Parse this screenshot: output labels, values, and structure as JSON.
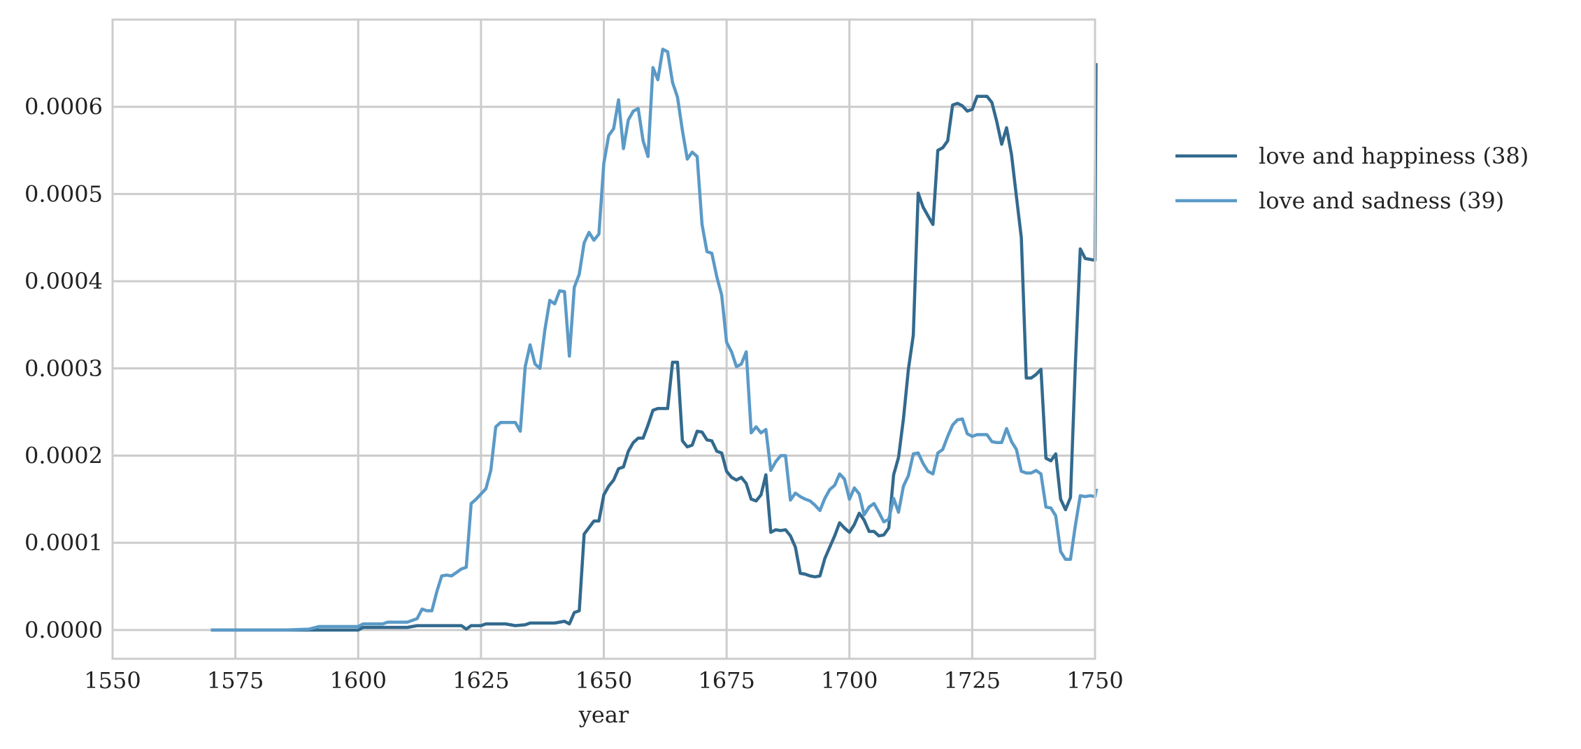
{
  "chart_data": {
    "type": "line",
    "title": "",
    "xlabel": "year",
    "ylabel": "",
    "xlim": [
      1550,
      1750
    ],
    "ylim": [
      -3.3e-05,
      0.0007
    ],
    "xticks": [
      1550,
      1575,
      1600,
      1625,
      1650,
      1675,
      1700,
      1725,
      1750
    ],
    "xtick_labels": [
      "1550",
      "1575",
      "1600",
      "1625",
      "1650",
      "1675",
      "1700",
      "1725",
      "1750"
    ],
    "yticks": [
      0,
      0.0001,
      0.0002,
      0.0003,
      0.0004,
      0.0005,
      0.0006
    ],
    "ytick_labels": [
      "0.0000",
      "0.0001",
      "0.0002",
      "0.0003",
      "0.0004",
      "0.0005",
      "0.0006"
    ],
    "grid": true,
    "legend_position": "outside-right-top",
    "series": [
      {
        "name": "love and happiness (38)",
        "color": "#336a8e",
        "points": [
          [
            1570,
            0
          ],
          [
            1575,
            0
          ],
          [
            1580,
            0
          ],
          [
            1585,
            0
          ],
          [
            1590,
            0
          ],
          [
            1595,
            0
          ],
          [
            1600,
            0
          ],
          [
            1601,
            3e-06
          ],
          [
            1605,
            3e-06
          ],
          [
            1610,
            3e-06
          ],
          [
            1612,
            5e-06
          ],
          [
            1618,
            5e-06
          ],
          [
            1621,
            5e-06
          ],
          [
            1622,
            1e-06
          ],
          [
            1623,
            5e-06
          ],
          [
            1625,
            5e-06
          ],
          [
            1626,
            7e-06
          ],
          [
            1630,
            7e-06
          ],
          [
            1632,
            5e-06
          ],
          [
            1634,
            6e-06
          ],
          [
            1635,
            8e-06
          ],
          [
            1640,
            8e-06
          ],
          [
            1642,
            1e-05
          ],
          [
            1643,
            7e-06
          ],
          [
            1644,
            2e-05
          ],
          [
            1645,
            2.2e-05
          ],
          [
            1646,
            0.00011
          ],
          [
            1648,
            0.000125
          ],
          [
            1649,
            0.000125
          ],
          [
            1650,
            0.000155
          ],
          [
            1651,
            0.000165
          ],
          [
            1652,
            0.000172
          ],
          [
            1653,
            0.000185
          ],
          [
            1654,
            0.000187
          ],
          [
            1655,
            0.000205
          ],
          [
            1656,
            0.000215
          ],
          [
            1657,
            0.00022
          ],
          [
            1658,
            0.00022
          ],
          [
            1659,
            0.000235
          ],
          [
            1660,
            0.000252
          ],
          [
            1661,
            0.000254
          ],
          [
            1662,
            0.000254
          ],
          [
            1663,
            0.000254
          ],
          [
            1664,
            0.000307
          ],
          [
            1665,
            0.000307
          ],
          [
            1666,
            0.000217
          ],
          [
            1667,
            0.00021
          ],
          [
            1668,
            0.000212
          ],
          [
            1669,
            0.000228
          ],
          [
            1670,
            0.000227
          ],
          [
            1671,
            0.000218
          ],
          [
            1672,
            0.000217
          ],
          [
            1673,
            0.000205
          ],
          [
            1674,
            0.000203
          ],
          [
            1675,
            0.000182
          ],
          [
            1676,
            0.000175
          ],
          [
            1677,
            0.000172
          ],
          [
            1678,
            0.000175
          ],
          [
            1679,
            0.000168
          ],
          [
            1680,
            0.00015
          ],
          [
            1681,
            0.000148
          ],
          [
            1682,
            0.000155
          ],
          [
            1683,
            0.000178
          ],
          [
            1684,
            0.000112
          ],
          [
            1685,
            0.000115
          ],
          [
            1686,
            0.000114
          ],
          [
            1687,
            0.000115
          ],
          [
            1688,
            0.000108
          ],
          [
            1689,
            9.5e-05
          ],
          [
            1690,
            6.5e-05
          ],
          [
            1691,
            6.4e-05
          ],
          [
            1692,
            6.2e-05
          ],
          [
            1693,
            6.1e-05
          ],
          [
            1694,
            6.2e-05
          ],
          [
            1695,
            8.2e-05
          ],
          [
            1696,
            9.5e-05
          ],
          [
            1697,
            0.000108
          ],
          [
            1698,
            0.000123
          ],
          [
            1699,
            0.000117
          ],
          [
            1700,
            0.000112
          ],
          [
            1701,
            0.000121
          ],
          [
            1702,
            0.000134
          ],
          [
            1703,
            0.000126
          ],
          [
            1704,
            0.000113
          ],
          [
            1705,
            0.000113
          ],
          [
            1706,
            0.000108
          ],
          [
            1707,
            0.000109
          ],
          [
            1708,
            0.000117
          ],
          [
            1709,
            0.000178
          ],
          [
            1710,
            0.000198
          ],
          [
            1711,
            0.000242
          ],
          [
            1712,
            0.000299
          ],
          [
            1713,
            0.000338
          ],
          [
            1714,
            0.000501
          ],
          [
            1715,
            0.000485
          ],
          [
            1716,
            0.000475
          ],
          [
            1717,
            0.000465
          ],
          [
            1718,
            0.00055
          ],
          [
            1719,
            0.000553
          ],
          [
            1720,
            0.000561
          ],
          [
            1721,
            0.000602
          ],
          [
            1722,
            0.000604
          ],
          [
            1723,
            0.000601
          ],
          [
            1724,
            0.000595
          ],
          [
            1725,
            0.000597
          ],
          [
            1726,
            0.000612
          ],
          [
            1727,
            0.000612
          ],
          [
            1728,
            0.000612
          ],
          [
            1729,
            0.000605
          ],
          [
            1730,
            0.000583
          ],
          [
            1731,
            0.000557
          ],
          [
            1732,
            0.000576
          ],
          [
            1733,
            0.000545
          ],
          [
            1734,
            0.000497
          ],
          [
            1735,
            0.00045
          ],
          [
            1736,
            0.000289
          ],
          [
            1737,
            0.000289
          ],
          [
            1738,
            0.000293
          ],
          [
            1739,
            0.000299
          ],
          [
            1740,
            0.000197
          ],
          [
            1741,
            0.000194
          ],
          [
            1742,
            0.000202
          ],
          [
            1743,
            0.00015
          ],
          [
            1744,
            0.000138
          ],
          [
            1745,
            0.000152
          ],
          [
            1746,
            0.000305
          ],
          [
            1747,
            0.000437
          ],
          [
            1748,
            0.000426
          ],
          [
            1749,
            0.000425
          ],
          [
            1750,
            0.000424
          ],
          [
            1750.2,
            0.00065
          ]
        ]
      },
      {
        "name": "love and sadness (39)",
        "color": "#5b9ac7",
        "points": [
          [
            1570,
            0
          ],
          [
            1575,
            0
          ],
          [
            1580,
            0
          ],
          [
            1585,
            0
          ],
          [
            1590,
            1e-06
          ],
          [
            1592,
            4e-06
          ],
          [
            1595,
            4e-06
          ],
          [
            1600,
            4e-06
          ],
          [
            1601,
            7e-06
          ],
          [
            1605,
            7e-06
          ],
          [
            1606,
            9e-06
          ],
          [
            1610,
            9e-06
          ],
          [
            1612,
            1.3e-05
          ],
          [
            1613,
            2.4e-05
          ],
          [
            1614,
            2.2e-05
          ],
          [
            1615,
            2.2e-05
          ],
          [
            1616,
            4.4e-05
          ],
          [
            1617,
            6.2e-05
          ],
          [
            1618,
            6.3e-05
          ],
          [
            1619,
            6.2e-05
          ],
          [
            1620,
            6.6e-05
          ],
          [
            1621,
            7e-05
          ],
          [
            1622,
            7.2e-05
          ],
          [
            1623,
            0.000145
          ],
          [
            1624,
            0.00015
          ],
          [
            1625,
            0.000156
          ],
          [
            1626,
            0.000162
          ],
          [
            1627,
            0.000183
          ],
          [
            1628,
            0.000233
          ],
          [
            1629,
            0.000238
          ],
          [
            1630,
            0.000238
          ],
          [
            1631,
            0.000238
          ],
          [
            1632,
            0.000238
          ],
          [
            1633,
            0.000228
          ],
          [
            1634,
            0.000302
          ],
          [
            1635,
            0.000327
          ],
          [
            1636,
            0.000305
          ],
          [
            1637,
            0.0003
          ],
          [
            1638,
            0.000344
          ],
          [
            1639,
            0.000378
          ],
          [
            1640,
            0.000374
          ],
          [
            1641,
            0.000389
          ],
          [
            1642,
            0.000388
          ],
          [
            1643,
            0.000314
          ],
          [
            1644,
            0.000393
          ],
          [
            1645,
            0.000408
          ],
          [
            1646,
            0.000444
          ],
          [
            1647,
            0.000456
          ],
          [
            1648,
            0.000447
          ],
          [
            1649,
            0.000454
          ],
          [
            1650,
            0.000535
          ],
          [
            1651,
            0.000567
          ],
          [
            1652,
            0.000575
          ],
          [
            1653,
            0.000608
          ],
          [
            1654,
            0.000552
          ],
          [
            1655,
            0.000585
          ],
          [
            1656,
            0.000595
          ],
          [
            1657,
            0.000598
          ],
          [
            1658,
            0.000561
          ],
          [
            1659,
            0.000543
          ],
          [
            1660,
            0.000645
          ],
          [
            1661,
            0.000631
          ],
          [
            1662,
            0.000666
          ],
          [
            1663,
            0.000663
          ],
          [
            1664,
            0.000628
          ],
          [
            1665,
            0.000611
          ],
          [
            1666,
            0.000573
          ],
          [
            1667,
            0.00054
          ],
          [
            1668,
            0.000548
          ],
          [
            1669,
            0.000543
          ],
          [
            1670,
            0.000465
          ],
          [
            1671,
            0.000434
          ],
          [
            1672,
            0.000432
          ],
          [
            1673,
            0.000405
          ],
          [
            1674,
            0.000384
          ],
          [
            1675,
            0.00033
          ],
          [
            1676,
            0.000319
          ],
          [
            1677,
            0.000302
          ],
          [
            1678,
            0.000305
          ],
          [
            1679,
            0.000319
          ],
          [
            1680,
            0.000226
          ],
          [
            1681,
            0.000233
          ],
          [
            1682,
            0.000226
          ],
          [
            1683,
            0.00023
          ],
          [
            1684,
            0.000183
          ],
          [
            1685,
            0.000193
          ],
          [
            1686,
            0.0002
          ],
          [
            1687,
            0.0002
          ],
          [
            1688,
            0.000149
          ],
          [
            1689,
            0.000157
          ],
          [
            1690,
            0.000153
          ],
          [
            1691,
            0.00015
          ],
          [
            1692,
            0.000148
          ],
          [
            1693,
            0.000143
          ],
          [
            1694,
            0.000137
          ],
          [
            1695,
            0.000151
          ],
          [
            1696,
            0.000161
          ],
          [
            1697,
            0.000166
          ],
          [
            1698,
            0.000179
          ],
          [
            1699,
            0.000173
          ],
          [
            1700,
            0.00015
          ],
          [
            1701,
            0.000163
          ],
          [
            1702,
            0.000156
          ],
          [
            1703,
            0.000132
          ],
          [
            1704,
            0.000141
          ],
          [
            1705,
            0.000145
          ],
          [
            1706,
            0.000135
          ],
          [
            1707,
            0.000124
          ],
          [
            1708,
            0.000127
          ],
          [
            1709,
            0.000151
          ],
          [
            1710,
            0.000135
          ],
          [
            1711,
            0.000165
          ],
          [
            1712,
            0.000177
          ],
          [
            1713,
            0.000202
          ],
          [
            1714,
            0.000203
          ],
          [
            1715,
            0.000191
          ],
          [
            1716,
            0.000182
          ],
          [
            1717,
            0.000179
          ],
          [
            1718,
            0.000203
          ],
          [
            1719,
            0.000207
          ],
          [
            1720,
            0.000222
          ],
          [
            1721,
            0.000235
          ],
          [
            1722,
            0.000241
          ],
          [
            1723,
            0.000242
          ],
          [
            1724,
            0.000225
          ],
          [
            1725,
            0.000222
          ],
          [
            1726,
            0.000224
          ],
          [
            1727,
            0.000224
          ],
          [
            1728,
            0.000224
          ],
          [
            1729,
            0.000216
          ],
          [
            1730,
            0.000215
          ],
          [
            1731,
            0.000215
          ],
          [
            1732,
            0.000231
          ],
          [
            1733,
            0.000216
          ],
          [
            1734,
            0.000207
          ],
          [
            1735,
            0.000182
          ],
          [
            1736,
            0.00018
          ],
          [
            1737,
            0.00018
          ],
          [
            1738,
            0.000183
          ],
          [
            1739,
            0.000179
          ],
          [
            1740,
            0.000141
          ],
          [
            1741,
            0.00014
          ],
          [
            1742,
            0.000131
          ],
          [
            1743,
            9e-05
          ],
          [
            1744,
            8.1e-05
          ],
          [
            1745,
            8.1e-05
          ],
          [
            1746,
            0.00012
          ],
          [
            1747,
            0.000154
          ],
          [
            1748,
            0.000153
          ],
          [
            1749,
            0.000154
          ],
          [
            1750,
            0.000153
          ],
          [
            1750.3,
            0.000162
          ]
        ]
      }
    ]
  }
}
